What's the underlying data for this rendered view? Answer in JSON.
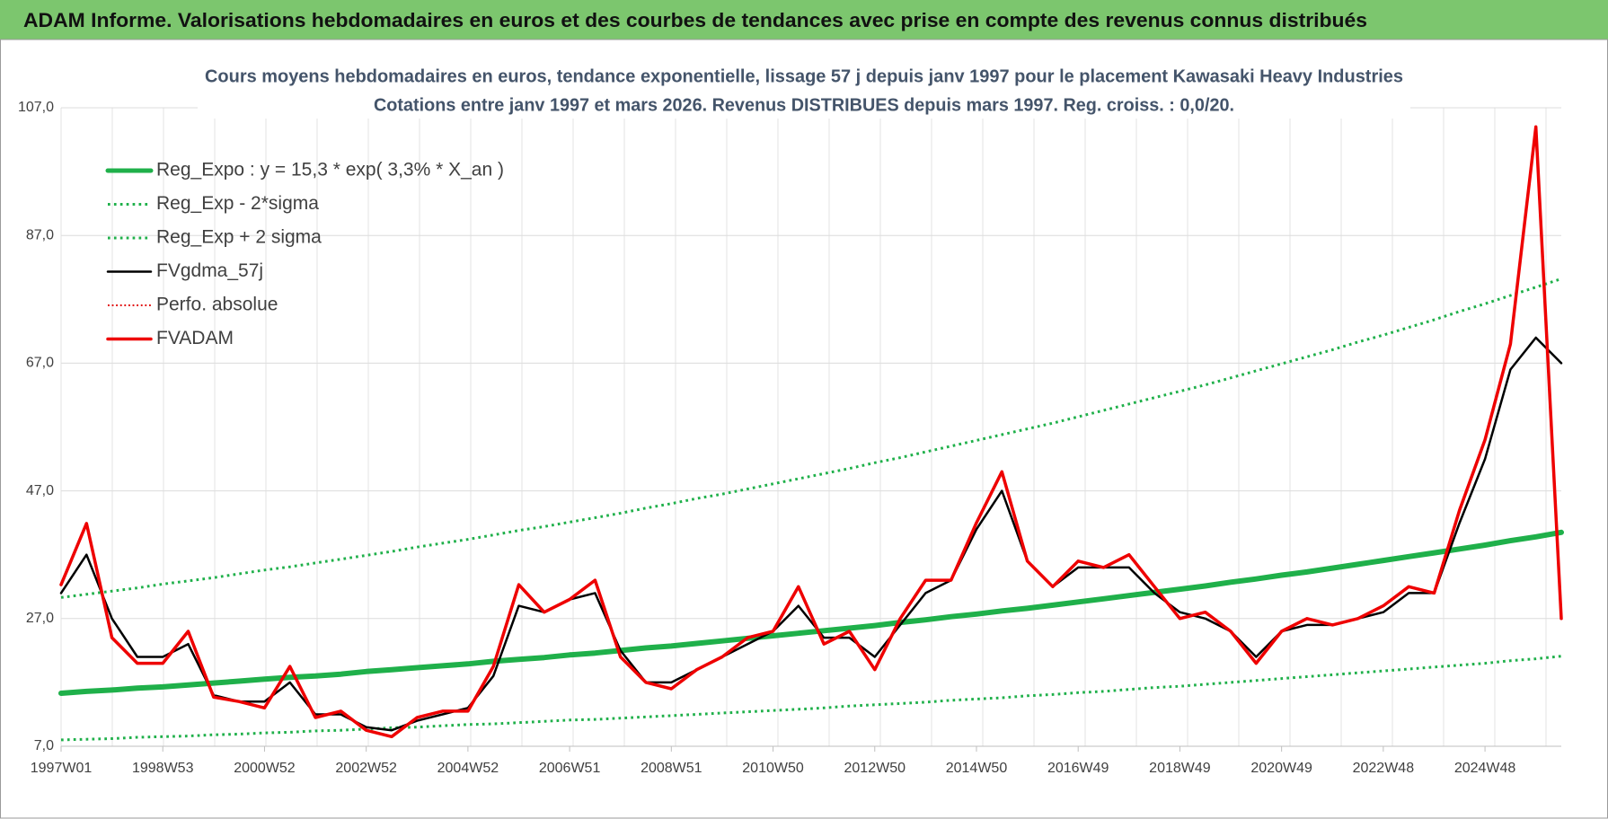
{
  "header": {
    "title": "ADAM Informe. Valorisations hebdomadaires en euros et des courbes de tendances avec prise en compte des revenus connus distribués"
  },
  "chart_data": {
    "type": "line",
    "title": "Cours moyens hebdomadaires en euros, tendance exponentielle, lissage 57 j depuis janv 1997 pour le placement Kawasaki Heavy Industries",
    "subtitle": "Cotations entre janv 1997 et mars 2026. Revenus DISTRIBUES depuis mars 1997. Reg. croiss. : 0,0/20.",
    "categories": [
      "1997W01",
      null,
      null,
      null,
      "1998W53",
      null,
      null,
      null,
      "2000W52",
      null,
      null,
      null,
      "2002W52",
      null,
      null,
      null,
      "2004W52",
      null,
      null,
      null,
      "2006W51",
      null,
      null,
      null,
      "2008W51",
      null,
      null,
      null,
      "2010W50",
      null,
      null,
      null,
      "2012W50",
      null,
      null,
      null,
      "2014W50",
      null,
      null,
      null,
      "2016W49",
      null,
      null,
      null,
      "2018W49",
      null,
      null,
      null,
      "2020W49",
      null,
      null,
      null,
      "2022W48",
      null,
      null,
      null,
      "2024W48",
      null,
      null,
      null
    ],
    "ylim": [
      7,
      107
    ],
    "yticks": [
      {
        "value": 7,
        "label": "7,0"
      },
      {
        "value": 27,
        "label": "27,0"
      },
      {
        "value": 47,
        "label": "47,0"
      },
      {
        "value": 67,
        "label": "67,0"
      },
      {
        "value": 87,
        "label": "87,0"
      },
      {
        "value": 107,
        "label": "107,0"
      }
    ],
    "grid": true,
    "legend": "top-left",
    "series": [
      {
        "name": "Reg_Expo : y = 15,3 * exp( 3,3% *  X_an )",
        "color": "#1fb04a",
        "dash": "solid",
        "width": 6,
        "values": [
          15.3,
          15.6,
          15.8,
          16.1,
          16.3,
          16.6,
          16.9,
          17.2,
          17.5,
          17.8,
          18.0,
          18.3,
          18.7,
          19.0,
          19.3,
          19.6,
          19.9,
          20.3,
          20.6,
          20.9,
          21.3,
          21.6,
          22.0,
          22.4,
          22.7,
          23.1,
          23.5,
          23.9,
          24.3,
          24.7,
          25.1,
          25.5,
          25.9,
          26.4,
          26.8,
          27.3,
          27.7,
          28.2,
          28.6,
          29.1,
          29.6,
          30.1,
          30.6,
          31.1,
          31.6,
          32.1,
          32.7,
          33.2,
          33.8,
          34.3,
          34.9,
          35.5,
          36.1,
          36.7,
          37.3,
          37.9,
          38.5,
          39.2,
          39.8,
          40.5
        ]
      },
      {
        "name": "Reg_Exp - 2*sigma",
        "color": "#1fb04a",
        "dash": "dotted",
        "width": 3,
        "values": [
          8.0,
          8.1,
          8.2,
          8.4,
          8.5,
          8.6,
          8.8,
          8.9,
          9.1,
          9.2,
          9.4,
          9.5,
          9.7,
          9.9,
          10.0,
          10.2,
          10.4,
          10.5,
          10.7,
          10.9,
          11.1,
          11.2,
          11.4,
          11.6,
          11.8,
          12.0,
          12.2,
          12.4,
          12.6,
          12.8,
          13.0,
          13.3,
          13.5,
          13.7,
          13.9,
          14.2,
          14.4,
          14.6,
          14.9,
          15.1,
          15.4,
          15.6,
          15.9,
          16.2,
          16.4,
          16.7,
          17.0,
          17.3,
          17.6,
          17.9,
          18.2,
          18.5,
          18.8,
          19.1,
          19.4,
          19.7,
          20.0,
          20.4,
          20.7,
          21.1
        ]
      },
      {
        "name": "Reg_Exp + 2 sigma",
        "color": "#1fb04a",
        "dash": "dotted",
        "width": 3,
        "values": [
          30.3,
          30.8,
          31.3,
          31.8,
          32.4,
          32.9,
          33.4,
          34.0,
          34.6,
          35.1,
          35.7,
          36.3,
          36.9,
          37.5,
          38.2,
          38.8,
          39.4,
          40.1,
          40.8,
          41.4,
          42.1,
          42.8,
          43.5,
          44.3,
          45.0,
          45.8,
          46.5,
          47.3,
          48.1,
          48.9,
          49.7,
          50.5,
          51.4,
          52.2,
          53.1,
          54.0,
          54.9,
          55.8,
          56.7,
          57.6,
          58.6,
          59.6,
          60.6,
          61.6,
          62.6,
          63.6,
          64.7,
          65.8,
          66.9,
          68.0,
          69.1,
          70.3,
          71.4,
          72.6,
          73.8,
          75.1,
          76.3,
          77.6,
          78.9,
          80.2
        ]
      },
      {
        "name": "FVgdma_57j",
        "color": "#000000",
        "dash": "solid",
        "width": 2.5,
        "values": [
          31,
          37,
          27,
          21,
          21,
          23,
          15,
          14,
          14,
          17,
          12,
          12,
          10,
          9.5,
          11,
          12,
          13,
          18,
          29,
          28,
          30,
          31,
          22,
          17,
          17,
          19,
          21,
          23,
          25,
          29,
          24,
          24,
          21,
          26,
          31,
          33,
          41,
          47,
          36,
          32,
          35,
          35,
          35,
          31,
          28,
          27,
          25,
          21,
          25,
          26,
          26,
          27,
          28,
          31,
          31,
          42,
          52,
          66,
          71,
          67
        ]
      },
      {
        "name": "Perfo. absolue",
        "color": "#e00000",
        "dash": "dotted",
        "width": 2,
        "values": [
          null,
          null,
          null,
          null,
          null,
          null,
          null,
          null,
          null,
          null,
          null,
          null,
          null,
          null,
          null,
          null,
          null,
          null,
          null,
          null,
          null,
          null,
          null,
          null,
          null,
          null,
          null,
          null,
          null,
          null,
          null,
          null,
          null,
          null,
          null,
          null,
          null,
          null,
          null,
          null,
          null,
          null,
          null,
          null,
          null,
          null,
          null,
          null,
          null,
          null,
          null,
          null,
          null,
          null,
          null,
          null,
          null,
          null,
          null,
          null
        ]
      },
      {
        "name": "FVADAM",
        "color": "#ee0000",
        "dash": "solid",
        "width": 3.5,
        "values": [
          32.3,
          41.9,
          24,
          20,
          20,
          25,
          14.7,
          14,
          13,
          19.5,
          11.5,
          12.5,
          9.5,
          8.5,
          11.5,
          12.5,
          12.5,
          19.5,
          32.3,
          28,
          30,
          33,
          21,
          17,
          16,
          19,
          21,
          24,
          25,
          32,
          23,
          25,
          19,
          27,
          33,
          33,
          42,
          50,
          36,
          32,
          36,
          35,
          37,
          32,
          27,
          28,
          25,
          20,
          25,
          27,
          26,
          27,
          29,
          32,
          31,
          44,
          55,
          70,
          104,
          27
        ]
      }
    ]
  }
}
